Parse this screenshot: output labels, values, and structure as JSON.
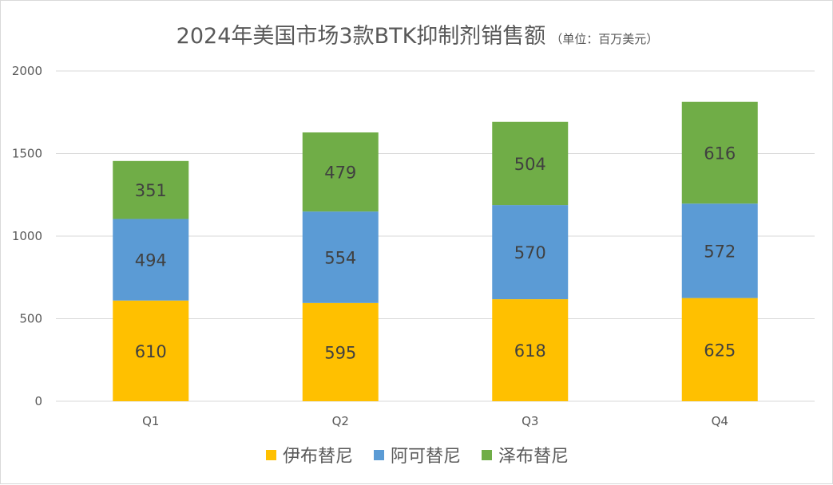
{
  "chart_data": {
    "type": "bar",
    "stacked": true,
    "title": "2024年美国市场3款BTK抑制剂销售额",
    "subtitle": "（单位：百万美元）",
    "xlabel": "",
    "ylabel": "",
    "categories": [
      "Q1",
      "Q2",
      "Q3",
      "Q4"
    ],
    "ylim": [
      0,
      2000
    ],
    "yticks": [
      0,
      500,
      1000,
      1500,
      2000
    ],
    "grid": true,
    "legend_position": "bottom",
    "series": [
      {
        "name": "伊布替尼",
        "color": "#FFC000",
        "values": [
          610,
          595,
          618,
          625
        ]
      },
      {
        "name": "阿可替尼",
        "color": "#5B9BD5",
        "values": [
          494,
          554,
          570,
          572
        ]
      },
      {
        "name": "泽布替尼",
        "color": "#70AD47",
        "values": [
          351,
          479,
          504,
          616
        ]
      }
    ]
  }
}
